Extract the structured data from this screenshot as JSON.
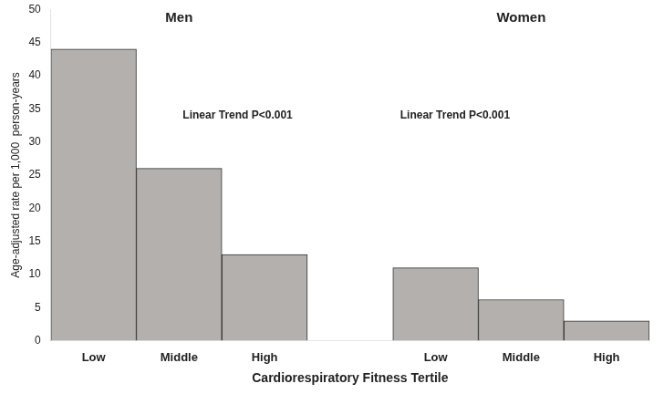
{
  "chart_data": {
    "type": "bar",
    "categories": [
      "Low",
      "Middle",
      "High",
      null,
      "Low",
      "Middle",
      "High"
    ],
    "values": [
      44,
      26,
      13,
      null,
      11,
      6.2,
      3
    ],
    "color": "#b3b0ad",
    "xlabel": "Cardiorespiratory Fitness Tertile",
    "ylabel": "Age-adjusted rate per 1,000  person-years",
    "group_labels": [
      "Men",
      "Women"
    ],
    "annotations": [
      "Linear Trend P<0.001",
      "Linear Trend P<0.001"
    ],
    "ylim": [
      0,
      50
    ],
    "yticks": [
      0,
      5,
      10,
      15,
      20,
      25,
      30,
      35,
      40,
      45,
      50
    ],
    "grid": false
  }
}
